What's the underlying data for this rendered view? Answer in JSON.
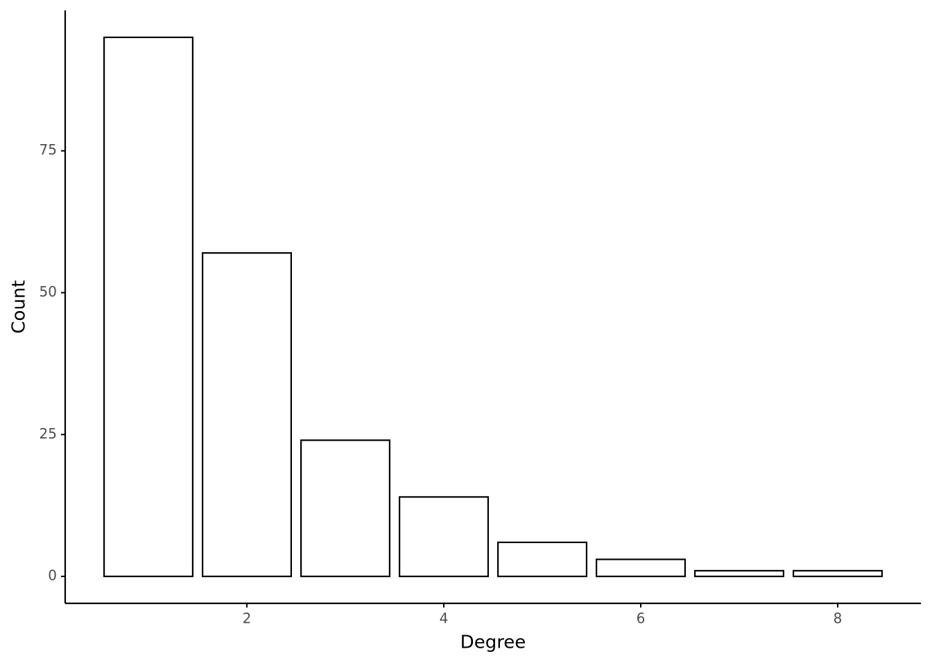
{
  "chart_data": {
    "type": "bar",
    "x": [
      1,
      2,
      3,
      4,
      5,
      6,
      7,
      8
    ],
    "values": [
      95,
      57,
      24,
      14,
      6,
      3,
      1,
      1
    ],
    "fill": "#ffffff",
    "edgecolor": "#000000",
    "xlabel": "Degree",
    "ylabel": "Count",
    "xlim": [
      0.155,
      8.845
    ],
    "ylim": [
      -4.75,
      99.75
    ],
    "xticks": [
      2,
      4,
      6,
      8
    ],
    "yticks": [
      0,
      25,
      50,
      75
    ],
    "grid": false
  }
}
